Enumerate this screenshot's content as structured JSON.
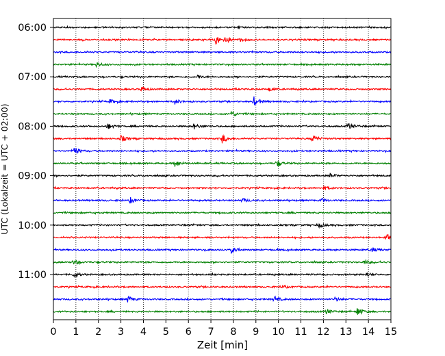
{
  "chart_data": {
    "type": "line",
    "title": "",
    "xlabel": "Zeit  [min]",
    "ylabel": "UTC (Lokalzeit = UTC + 02:00)",
    "xlim": [
      0,
      15
    ],
    "x_ticks": [
      "0",
      "1",
      "2",
      "3",
      "4",
      "5",
      "6",
      "7",
      "8",
      "9",
      "10",
      "11",
      "12",
      "13",
      "14",
      "15"
    ],
    "y_ticks": [
      "06:00",
      "07:00",
      "08:00",
      "09:00",
      "10:00",
      "11:00"
    ],
    "trace_start": "06:00",
    "trace_interval_min": 15,
    "trace_count": 24,
    "grid": "vertical-dotted",
    "legend": "none",
    "colors": [
      "#000000",
      "#ff0000",
      "#0000ff",
      "#008000"
    ],
    "series": [
      {
        "start": "06:00",
        "events": [
          {
            "t": 8.2,
            "a": 0.2
          }
        ]
      },
      {
        "start": "06:15",
        "events": [
          {
            "t": 7.2,
            "a": 0.6
          },
          {
            "t": 7.6,
            "a": 0.45
          },
          {
            "t": 8.3,
            "a": 0.2
          }
        ]
      },
      {
        "start": "06:30",
        "events": []
      },
      {
        "start": "06:45",
        "events": [
          {
            "t": 1.9,
            "a": 0.3
          }
        ]
      },
      {
        "start": "07:00",
        "events": [
          {
            "t": 6.4,
            "a": 0.2
          }
        ]
      },
      {
        "start": "07:15",
        "events": [
          {
            "t": 3.9,
            "a": 0.3
          },
          {
            "t": 9.6,
            "a": 0.25
          }
        ]
      },
      {
        "start": "07:30",
        "events": [
          {
            "t": 2.5,
            "a": 0.25
          },
          {
            "t": 5.4,
            "a": 0.3
          },
          {
            "t": 8.9,
            "a": 0.6
          }
        ]
      },
      {
        "start": "07:45",
        "events": [
          {
            "t": 7.9,
            "a": 0.4
          }
        ]
      },
      {
        "start": "08:00",
        "events": [
          {
            "t": 2.4,
            "a": 0.4
          },
          {
            "t": 6.2,
            "a": 0.4
          },
          {
            "t": 13.1,
            "a": 0.45
          }
        ]
      },
      {
        "start": "08:15",
        "events": [
          {
            "t": 3.0,
            "a": 0.4
          },
          {
            "t": 7.5,
            "a": 0.55
          },
          {
            "t": 11.5,
            "a": 0.55
          }
        ]
      },
      {
        "start": "08:30",
        "events": [
          {
            "t": 0.9,
            "a": 0.55
          }
        ]
      },
      {
        "start": "08:45",
        "events": [
          {
            "t": 5.4,
            "a": 0.45
          },
          {
            "t": 9.9,
            "a": 0.45
          }
        ]
      },
      {
        "start": "09:00",
        "events": [
          {
            "t": 12.3,
            "a": 0.25
          }
        ]
      },
      {
        "start": "09:15",
        "events": [
          {
            "t": 12.0,
            "a": 0.25
          }
        ]
      },
      {
        "start": "09:30",
        "events": [
          {
            "t": 3.4,
            "a": 0.4
          },
          {
            "t": 8.4,
            "a": 0.25
          },
          {
            "t": 11.9,
            "a": 0.25
          }
        ]
      },
      {
        "start": "09:45",
        "events": []
      },
      {
        "start": "10:00",
        "events": [
          {
            "t": 11.8,
            "a": 0.3
          }
        ]
      },
      {
        "start": "10:15",
        "events": [
          {
            "t": 14.8,
            "a": 0.4
          }
        ]
      },
      {
        "start": "10:30",
        "events": [
          {
            "t": 7.9,
            "a": 0.35
          },
          {
            "t": 14.1,
            "a": 0.35
          }
        ]
      },
      {
        "start": "10:45",
        "events": [
          {
            "t": 0.9,
            "a": 0.35
          },
          {
            "t": 13.8,
            "a": 0.3
          }
        ]
      },
      {
        "start": "11:00",
        "events": [
          {
            "t": 0.9,
            "a": 0.35
          },
          {
            "t": 13.9,
            "a": 0.3
          }
        ]
      },
      {
        "start": "11:15",
        "events": [
          {
            "t": 10.2,
            "a": 0.2
          }
        ]
      },
      {
        "start": "11:30",
        "events": [
          {
            "t": 3.3,
            "a": 0.4
          },
          {
            "t": 9.8,
            "a": 0.4
          },
          {
            "t": 12.5,
            "a": 0.3
          }
        ]
      },
      {
        "start": "11:45",
        "events": [
          {
            "t": 12.1,
            "a": 0.35
          },
          {
            "t": 13.5,
            "a": 0.55
          }
        ]
      }
    ]
  }
}
